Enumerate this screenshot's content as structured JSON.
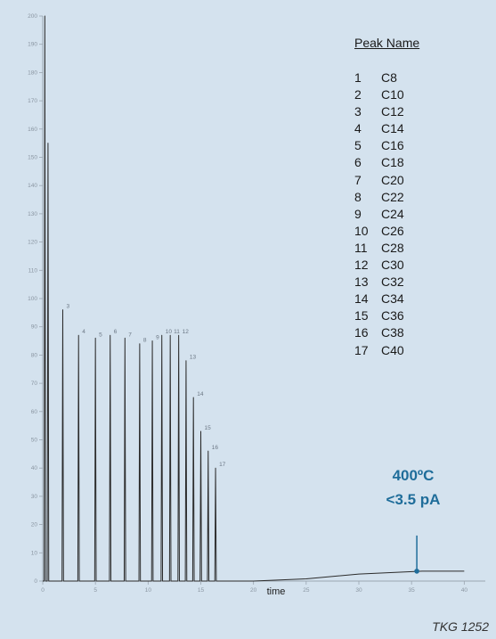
{
  "chart_data": {
    "type": "line",
    "xlabel": "time",
    "ylabel": "",
    "xlim": [
      0,
      42
    ],
    "ylim": [
      0,
      200
    ],
    "x_ticks": [
      0,
      5,
      10,
      15,
      20,
      25,
      30,
      35,
      40
    ],
    "y_ticks": [
      0,
      10,
      20,
      30,
      40,
      50,
      60,
      70,
      80,
      90,
      100,
      110,
      120,
      130,
      140,
      150,
      160,
      170,
      180,
      190,
      200
    ],
    "solvent_peaks": [
      {
        "x": 0.2,
        "y": 200
      },
      {
        "x": 0.5,
        "y": 155
      }
    ],
    "peaks": [
      {
        "label": "3",
        "x": 1.9,
        "y": 96
      },
      {
        "label": "4",
        "x": 3.4,
        "y": 87
      },
      {
        "label": "5",
        "x": 5.0,
        "y": 86
      },
      {
        "label": "6",
        "x": 6.4,
        "y": 87
      },
      {
        "label": "7",
        "x": 7.8,
        "y": 86
      },
      {
        "label": "8",
        "x": 9.2,
        "y": 84
      },
      {
        "label": "9",
        "x": 10.4,
        "y": 85
      },
      {
        "label": "10",
        "x": 11.3,
        "y": 87
      },
      {
        "label": "11",
        "x": 12.1,
        "y": 87
      },
      {
        "label": "12",
        "x": 12.9,
        "y": 87
      },
      {
        "label": "13",
        "x": 13.6,
        "y": 78
      },
      {
        "label": "14",
        "x": 14.3,
        "y": 65
      },
      {
        "label": "15",
        "x": 15.0,
        "y": 53
      },
      {
        "label": "16",
        "x": 15.7,
        "y": 46
      },
      {
        "label": "17",
        "x": 16.4,
        "y": 40
      }
    ],
    "baseline": [
      [
        0,
        0
      ],
      [
        20,
        0
      ],
      [
        25,
        0.8
      ],
      [
        30,
        2.5
      ],
      [
        36,
        3.5
      ],
      [
        40,
        3.5
      ]
    ],
    "legend_title": "Peak Name",
    "legend": [
      {
        "num": "1",
        "name": "C8"
      },
      {
        "num": "2",
        "name": "C10"
      },
      {
        "num": "3",
        "name": "C12"
      },
      {
        "num": "4",
        "name": "C14"
      },
      {
        "num": "5",
        "name": "C16"
      },
      {
        "num": "6",
        "name": "C18"
      },
      {
        "num": "7",
        "name": "C20"
      },
      {
        "num": "8",
        "name": "C22"
      },
      {
        "num": "9",
        "name": "C24"
      },
      {
        "num": "10",
        "name": "C26"
      },
      {
        "num": "11",
        "name": "C28"
      },
      {
        "num": "12",
        "name": "C30"
      },
      {
        "num": "13",
        "name": "C32"
      },
      {
        "num": "14",
        "name": "C34"
      },
      {
        "num": "15",
        "name": "C36"
      },
      {
        "num": "16",
        "name": "C38"
      },
      {
        "num": "17",
        "name": "C40"
      }
    ],
    "annotation": {
      "line1": "400ºC",
      "line2": "<3.5 pA",
      "x": 35.5,
      "y": 3.5
    },
    "colors": {
      "trace": "#2b2b2b",
      "annotation": "#1f6d9a",
      "background": "#d4e2ee"
    }
  },
  "figure_tag": "TKG 1252"
}
